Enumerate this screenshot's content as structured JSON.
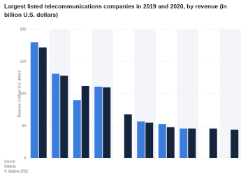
{
  "chart_data": {
    "type": "bar",
    "title": "Largest listed telecommunications companies in 2019 and 2020, by revenue (in billion U.S. dollars)",
    "y_label": "Revenue in billion U.S. dollars",
    "categories": [
      null,
      null,
      null,
      null,
      null,
      null,
      null,
      null,
      null,
      null
    ],
    "series": [
      {
        "color": "#3b7ddd",
        "values": [
          180,
          131,
          90,
          111,
          null,
          57,
          53,
          46,
          null,
          null
        ]
      },
      {
        "color": "#14253d",
        "values": [
          172,
          128,
          112,
          110,
          68,
          55,
          48,
          46,
          46,
          44
        ]
      }
    ],
    "ylim": [
      0,
      200
    ],
    "yticks": [
      0,
      50,
      100,
      150,
      200
    ],
    "grid": true,
    "source": [
      "Source",
      "Statista",
      "© Statista 2021"
    ]
  }
}
